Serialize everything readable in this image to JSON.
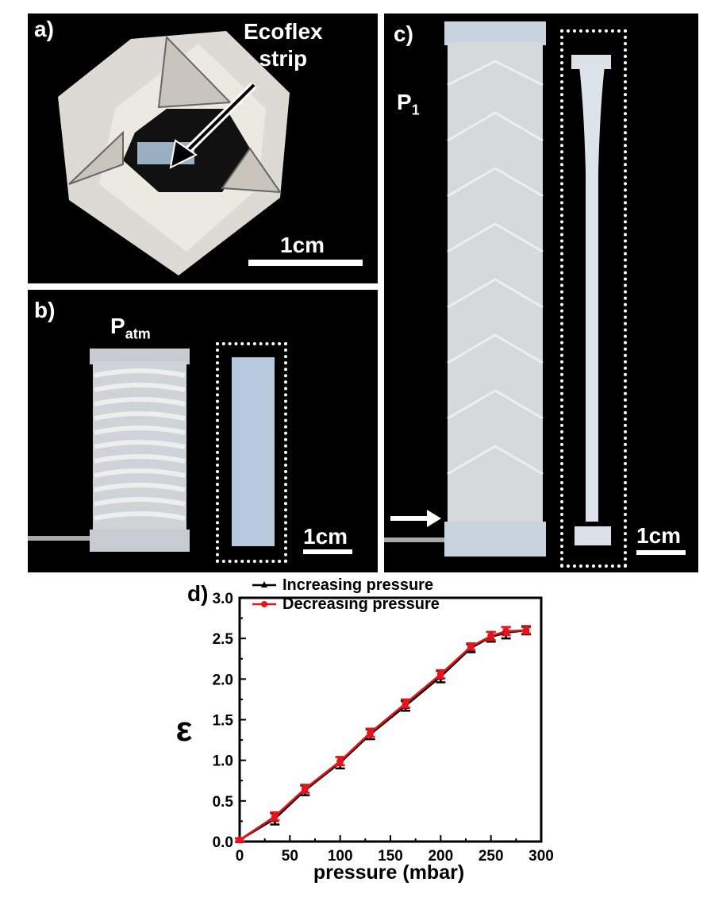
{
  "panel_a": {
    "label": "a)",
    "annotation_line1": "Ecoflex",
    "annotation_line2": "strip",
    "scale": "1cm"
  },
  "panel_b": {
    "label": "b)",
    "pressure_label": "P",
    "pressure_sub": "atm",
    "scale": "1cm"
  },
  "panel_c": {
    "label": "c)",
    "pressure_label": "P",
    "pressure_sub": "1",
    "scale": "1cm"
  },
  "colors": {
    "increasing": "#000000",
    "decreasing": "#e8141c",
    "background": "#000000"
  },
  "chart_data": {
    "type": "line",
    "panel_label": "d)",
    "xlabel": "pressure (mbar)",
    "ylabel": "ε",
    "xlim": [
      0,
      300
    ],
    "ylim": [
      0.0,
      3.0
    ],
    "xticks": [
      "0",
      "50",
      "100",
      "150",
      "200",
      "250",
      "300"
    ],
    "yticks": [
      "0.0",
      "0.5",
      "1.0",
      "1.5",
      "2.0",
      "2.5",
      "3.0"
    ],
    "legend_position": "top-left",
    "grid": false,
    "series": [
      {
        "name": "Increasing pressure",
        "x": [
          0,
          35,
          65,
          100,
          130,
          165,
          200,
          230,
          250,
          265,
          285
        ],
        "y": [
          0.02,
          0.28,
          0.63,
          0.97,
          1.32,
          1.67,
          2.03,
          2.38,
          2.52,
          2.57,
          2.6
        ],
        "err": [
          0.02,
          0.07,
          0.06,
          0.07,
          0.06,
          0.06,
          0.07,
          0.05,
          0.06,
          0.07,
          0.05
        ]
      },
      {
        "name": "Decreasing pressure",
        "x": [
          0,
          35,
          65,
          100,
          130,
          165,
          200,
          230,
          250,
          265,
          285
        ],
        "y": [
          0.02,
          0.31,
          0.65,
          0.99,
          1.34,
          1.7,
          2.06,
          2.4,
          2.53,
          2.59,
          2.6
        ],
        "err": [
          0.02,
          0.05,
          0.05,
          0.05,
          0.05,
          0.05,
          0.05,
          0.04,
          0.05,
          0.05,
          0.04
        ]
      }
    ]
  }
}
